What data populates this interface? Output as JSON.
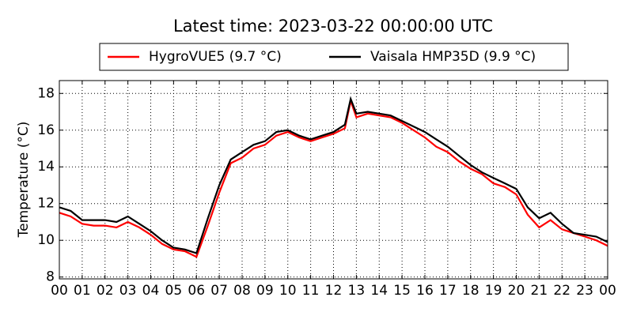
{
  "chart_data": {
    "type": "line",
    "title": "Latest time: 2023-03-22 00:00:00 UTC",
    "ylabel": "Temperature (°C)",
    "x": [
      0,
      0.5,
      1,
      1.5,
      2,
      2.5,
      3,
      3.5,
      4,
      4.5,
      5,
      5.5,
      6,
      6.5,
      7,
      7.5,
      8,
      8.5,
      9,
      9.5,
      10,
      10.5,
      11,
      11.5,
      12,
      12.5,
      12.75,
      13,
      13.5,
      14,
      14.5,
      15,
      15.5,
      16,
      16.5,
      17,
      17.5,
      18,
      18.5,
      19,
      19.5,
      20,
      20.5,
      21,
      21.5,
      22,
      22.5,
      23,
      23.5,
      24
    ],
    "series": [
      {
        "name": "HygroVUE5 (9.7 °C)",
        "color": "#ff0000",
        "values": [
          11.5,
          11.3,
          10.9,
          10.8,
          10.8,
          10.7,
          11.0,
          10.7,
          10.3,
          9.8,
          9.5,
          9.4,
          9.1,
          10.8,
          12.6,
          14.2,
          14.5,
          15.0,
          15.2,
          15.7,
          15.9,
          15.6,
          15.4,
          15.6,
          15.8,
          16.1,
          17.6,
          16.7,
          16.9,
          16.8,
          16.7,
          16.4,
          16.0,
          15.6,
          15.1,
          14.8,
          14.3,
          13.9,
          13.6,
          13.1,
          12.9,
          12.5,
          11.4,
          10.7,
          11.1,
          10.6,
          10.4,
          10.2,
          10.0,
          9.7
        ]
      },
      {
        "name": "Vaisala HMP35D (9.9 °C)",
        "color": "#000000",
        "values": [
          11.8,
          11.6,
          11.1,
          11.1,
          11.1,
          11.0,
          11.3,
          10.9,
          10.5,
          10.0,
          9.6,
          9.5,
          9.3,
          11.2,
          13.0,
          14.4,
          14.8,
          15.2,
          15.4,
          15.9,
          16.0,
          15.7,
          15.5,
          15.7,
          15.9,
          16.3,
          17.7,
          16.9,
          17.0,
          16.9,
          16.8,
          16.5,
          16.2,
          15.9,
          15.5,
          15.1,
          14.6,
          14.1,
          13.7,
          13.4,
          13.1,
          12.8,
          11.8,
          11.2,
          11.5,
          10.9,
          10.4,
          10.3,
          10.2,
          9.9
        ]
      }
    ],
    "xlim": [
      0,
      24
    ],
    "xticks": [
      {
        "value": 0,
        "label": "00"
      },
      {
        "value": 1,
        "label": "01"
      },
      {
        "value": 2,
        "label": "02"
      },
      {
        "value": 3,
        "label": "03"
      },
      {
        "value": 4,
        "label": "04"
      },
      {
        "value": 5,
        "label": "05"
      },
      {
        "value": 6,
        "label": "06"
      },
      {
        "value": 7,
        "label": "07"
      },
      {
        "value": 8,
        "label": "08"
      },
      {
        "value": 9,
        "label": "09"
      },
      {
        "value": 10,
        "label": "10"
      },
      {
        "value": 11,
        "label": "11"
      },
      {
        "value": 12,
        "label": "12"
      },
      {
        "value": 13,
        "label": "13"
      },
      {
        "value": 14,
        "label": "14"
      },
      {
        "value": 15,
        "label": "15"
      },
      {
        "value": 16,
        "label": "16"
      },
      {
        "value": 17,
        "label": "17"
      },
      {
        "value": 18,
        "label": "18"
      },
      {
        "value": 19,
        "label": "19"
      },
      {
        "value": 20,
        "label": "20"
      },
      {
        "value": 21,
        "label": "21"
      },
      {
        "value": 22,
        "label": "22"
      },
      {
        "value": 23,
        "label": "23"
      },
      {
        "value": 24,
        "label": "00"
      }
    ],
    "ylim": [
      7.9,
      18.7
    ],
    "yticks": [
      8,
      10,
      12,
      14,
      16,
      18
    ],
    "grid": true,
    "legend": "top"
  }
}
